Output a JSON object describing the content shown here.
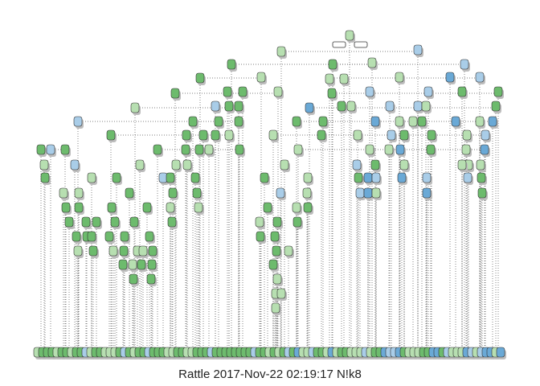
{
  "caption": "Rattle 2017-Nov-22 02:19:17 N!k8",
  "colors": {
    "green": "#6dbb6d",
    "light_green": "#b7dfb1",
    "light_blue": "#a9cde8",
    "blue": "#6aa9d6",
    "node_border": "#333333",
    "edge": "#555555",
    "shadow": "#bdbdbd"
  },
  "tree": {
    "type": "decision-tree",
    "node_shape": "rounded-rectangle",
    "leaf_row": "bottom",
    "classes": [
      "green",
      "light_green",
      "light_blue",
      "blue"
    ]
  }
}
